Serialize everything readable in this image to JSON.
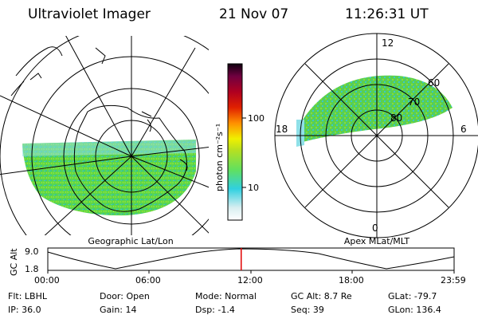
{
  "header": {
    "title": "Ultraviolet Imager",
    "date": "21 Nov 07",
    "time": "11:26:31 UT"
  },
  "left_panel": {
    "caption": "Geographic Lat/Lon"
  },
  "right_panel": {
    "caption": "Apex MLat/MLT",
    "mlt_labels": {
      "top": "12",
      "left": "18",
      "right": "6",
      "bottom": "0"
    },
    "mlat_labels": [
      "60",
      "70",
      "80"
    ]
  },
  "colorbar": {
    "unit_label": "photon cm⁻²s⁻¹",
    "ticks": [
      "100",
      "10"
    ]
  },
  "altitude_plot": {
    "label": "GC Alt",
    "y_ticks": [
      "9.0",
      "1.8"
    ],
    "x_ticks": [
      "00:00",
      "06:00",
      "12:00",
      "18:00",
      "23:59"
    ],
    "current_time_fraction": 0.476
  },
  "status": {
    "flt": "Flt: LBHL",
    "ip": "IP: 36.0",
    "door": "Door: Open",
    "gain": "Gain: 14",
    "mode": "Mode: Normal",
    "dsp": "Dsp:     -1.4",
    "gc_alt": "GC Alt: 8.7 Re",
    "seq": "Seq: 39",
    "glat": "GLat: -79.7",
    "glon": "GLon: 136.4"
  },
  "colors": {
    "aurora_green": "#5cd64a",
    "aurora_cyan": "#3ad0d8",
    "time_marker": "#e00000"
  }
}
